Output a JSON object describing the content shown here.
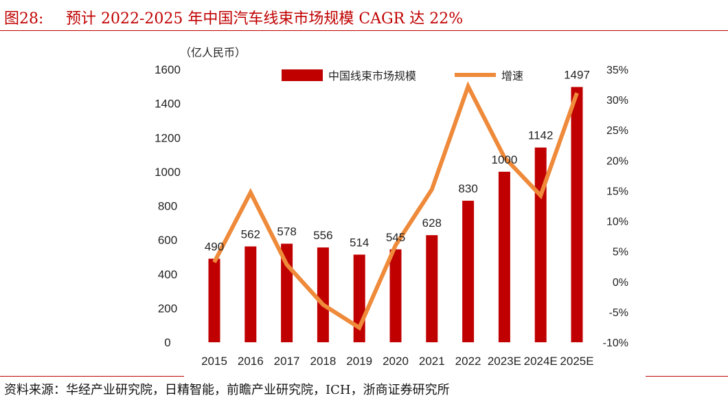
{
  "figure": {
    "number": "图28:",
    "title": "预计 2022-2025 年中国汽车线束市场规模 CAGR 达 22%",
    "source": "资料来源：华经产业研究院，日精智能，前瞻产业研究院，ICH，浙商证券研究所"
  },
  "colors": {
    "bar": "#c00000",
    "line": "#ee8a3a",
    "accent": "#c00000"
  },
  "chart_data": {
    "type": "bar",
    "unit_label": "（亿人民币）",
    "categories": [
      "2015",
      "2016",
      "2017",
      "2018",
      "2019",
      "2020",
      "2021",
      "2022",
      "2023E",
      "2024E",
      "2025E"
    ],
    "series": [
      {
        "name": "中国线束市场规模",
        "type": "bar",
        "axis": "left",
        "values": [
          490,
          562,
          578,
          556,
          514,
          545,
          628,
          830,
          1000,
          1142,
          1497
        ]
      },
      {
        "name": "增速",
        "type": "line",
        "axis": "right",
        "values": [
          3.2,
          14.7,
          2.8,
          -3.8,
          -7.6,
          6.0,
          15.2,
          32.2,
          20.5,
          14.2,
          31.1
        ]
      }
    ],
    "data_labels": [
      "490",
      "562",
      "578",
      "556",
      "514",
      "545",
      "628",
      "830",
      "1000",
      "1142",
      "1497"
    ],
    "y_left": {
      "min": 0,
      "max": 1600,
      "ticks": [
        "0",
        "200",
        "400",
        "600",
        "800",
        "1000",
        "1200",
        "1400",
        "1600"
      ]
    },
    "y_right": {
      "min": -10,
      "max": 35,
      "ticks": [
        "-10%",
        "-5%",
        "0%",
        "5%",
        "10%",
        "15%",
        "20%",
        "25%",
        "30%",
        "35%"
      ]
    },
    "legend": {
      "placement": "top",
      "entries": [
        "中国线束市场规模",
        "增速"
      ]
    },
    "grid": false
  }
}
